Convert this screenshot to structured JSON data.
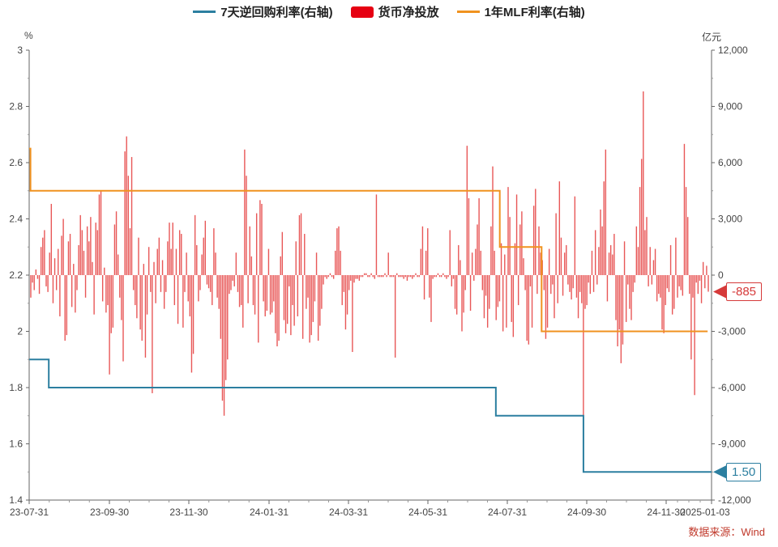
{
  "legend": {
    "repo": "7天逆回购利率(右轴)",
    "net": "货币净投放",
    "mlf": "1年MLF利率(右轴)"
  },
  "axes": {
    "left_unit": "%",
    "right_unit": "亿元"
  },
  "source": "数据来源：Wind",
  "callouts": {
    "net_last": "-885",
    "repo_last": "1.50"
  },
  "colors": {
    "repo": "#2c7fa0",
    "net": "#e64545",
    "mlf": "#f0921f",
    "axis": "#666666"
  },
  "chart_data": {
    "type": "bar+line",
    "left_axis": {
      "min": 1.4,
      "max": 3.0,
      "ticks": [
        "1.4",
        "1.6",
        "1.8",
        "2",
        "2.2",
        "2.4",
        "2.6",
        "2.8",
        "3"
      ]
    },
    "right_axis": {
      "min": -12000,
      "max": 12000,
      "ticks": [
        "-12,000",
        "-9,000",
        "-6,000",
        "-3,000",
        "0",
        "3,000",
        "6,000",
        "9,000",
        "12,000"
      ]
    },
    "x_ticks": [
      "23-07-31",
      "23-09-30",
      "23-11-30",
      "24-01-31",
      "24-03-31",
      "24-05-31",
      "24-07-31",
      "24-09-30",
      "24-11-30",
      "2025-01-03"
    ],
    "x_range": [
      "2023-07-31",
      "2025-01-03"
    ],
    "repo_rate": [
      {
        "date": "2023-07-31",
        "value": 1.9
      },
      {
        "date": "2023-08-15",
        "value": 1.8
      },
      {
        "date": "2024-07-22",
        "value": 1.7
      },
      {
        "date": "2024-09-27",
        "value": 1.5
      },
      {
        "date": "2025-01-03",
        "value": 1.5
      }
    ],
    "mlf_rate": [
      {
        "date": "2023-07-31",
        "value": 2.65
      },
      {
        "date": "2023-08-01",
        "value": 2.5
      },
      {
        "date": "2024-07-25",
        "value": 2.3
      },
      {
        "date": "2024-08-26",
        "value": 2.0
      },
      {
        "date": "2024-12-31",
        "value": 2.0
      }
    ],
    "net_injection": [
      -1200,
      -400,
      -800,
      300,
      -200,
      -1000,
      1500,
      2000,
      2400,
      -600,
      -900,
      1200,
      3800,
      -1500,
      900,
      -800,
      1400,
      -2200,
      2100,
      3000,
      -3500,
      -3200,
      1800,
      2200,
      -1700,
      600,
      -2000,
      -800,
      1600,
      3200,
      2400,
      1300,
      -1200,
      2600,
      1800,
      3100,
      700,
      -2100,
      2800,
      2400,
      4300,
      4500,
      -1400,
      400,
      -2000,
      -1600,
      -5300,
      -3100,
      -2800,
      2700,
      3400,
      1100,
      -1200,
      -2400,
      -4600,
      6600,
      7400,
      5300,
      2500,
      6300,
      -800,
      -1600,
      -2300,
      2000,
      -2900,
      -3500,
      600,
      -4400,
      -2100,
      1500,
      -900,
      -6300,
      700,
      -1500,
      1400,
      2000,
      -900,
      800,
      -1800,
      -900,
      1800,
      2800,
      1400,
      2800,
      -1600,
      1400,
      -2600,
      2400,
      2200,
      -2800,
      -900,
      1200,
      -1400,
      -2200,
      -5200,
      -4200,
      3200,
      1600,
      -1400,
      -800,
      1100,
      2000,
      2900,
      -500,
      -700,
      -900,
      -1600,
      2500,
      1200,
      -1200,
      -1800,
      -3400,
      -6700,
      -7500,
      -5600,
      -4500,
      -1000,
      -800,
      -300,
      -600,
      1200,
      -900,
      -1700,
      -1600,
      -2800,
      6700,
      5300,
      -1500,
      2600,
      1000,
      -1600,
      -2100,
      3300,
      -3600,
      4000,
      3800,
      -1400,
      -2200,
      -1900,
      1400,
      -2100,
      -2000,
      -1400,
      -3100,
      -3800,
      -3500,
      1000,
      2300,
      -2400,
      -3100,
      -2600,
      -600,
      -3200,
      -1600,
      -2700,
      1800,
      -2200,
      3200,
      3300,
      -3400,
      2200,
      -1800,
      -1200,
      -3600,
      -3200,
      -2500,
      -1400,
      1200,
      -3500,
      -2700,
      -1800,
      -500,
      -100,
      -200,
      -100,
      100,
      -100,
      -200,
      1300,
      2500,
      2600,
      1300,
      -1600,
      -900,
      -2900,
      -2100,
      -800,
      -300,
      -4100,
      -400,
      -200,
      -200,
      -300,
      -100,
      -100,
      100,
      100,
      -100,
      -100,
      100,
      -100,
      -200,
      4300,
      -100,
      -100,
      -100,
      -100,
      100,
      -100,
      1200,
      -100,
      -100,
      -100,
      -4400,
      100,
      -100,
      -100,
      -100,
      -200,
      -100,
      -300,
      -100,
      -100,
      -200,
      -100,
      100,
      -100,
      -100,
      1400,
      2600,
      -1300,
      1300,
      2500,
      -1200,
      -2500,
      -200,
      -100,
      -100,
      100,
      -100,
      -100,
      100,
      -100,
      -200,
      -100,
      2400,
      -600,
      -200,
      -1800,
      -2100,
      1600,
      800,
      -3000,
      -2000,
      -800,
      6900,
      4100,
      -1900,
      1200,
      -300,
      1400,
      2700,
      4100,
      1300,
      -800,
      -2300,
      -1100,
      -2800,
      -1800,
      2600,
      5800,
      1300,
      -2400,
      -1700,
      -1400,
      1700,
      -3000,
      1100,
      -2800,
      4700,
      3100,
      -2500,
      -3300,
      1700,
      4300,
      -1600,
      2700,
      3400,
      900,
      -800,
      -3500,
      -3700,
      -600,
      -2800,
      3700,
      4600,
      -1000,
      2600,
      1200,
      800,
      -800,
      -3400,
      -2800,
      1400,
      -1000,
      -500,
      -2300,
      3300,
      -1500,
      5000,
      2000,
      -1100,
      1200,
      1600,
      -500,
      -900,
      -1300,
      -700,
      4200,
      -1200,
      -2300,
      -900,
      -1500,
      -9000,
      -1800,
      -1600,
      -400,
      -1000,
      1300,
      -900,
      2400,
      -500,
      1500,
      3500,
      2600,
      5000,
      6700,
      -1400,
      1200,
      1600,
      1100,
      2200,
      -2400,
      -3800,
      -2900,
      -4700,
      -3700,
      1800,
      -2500,
      -500,
      -1800,
      -2400,
      -900,
      -400,
      2600,
      1500,
      4700,
      6200,
      9800,
      2400,
      3100,
      -600,
      1500,
      -500,
      800,
      1400,
      -1400,
      -1000,
      -1200,
      -2900,
      -3100,
      -1600,
      -700,
      -900,
      1600,
      -2100,
      -1800,
      2000,
      -1200,
      -600,
      -800,
      -1100,
      7000,
      4700,
      3100,
      -1000,
      -4500,
      -1200,
      -6400,
      -400,
      -1000,
      -300,
      -1500,
      700,
      -700,
      500,
      -885
    ],
    "last_labels": {
      "net": "-885",
      "repo": "1.50"
    }
  }
}
